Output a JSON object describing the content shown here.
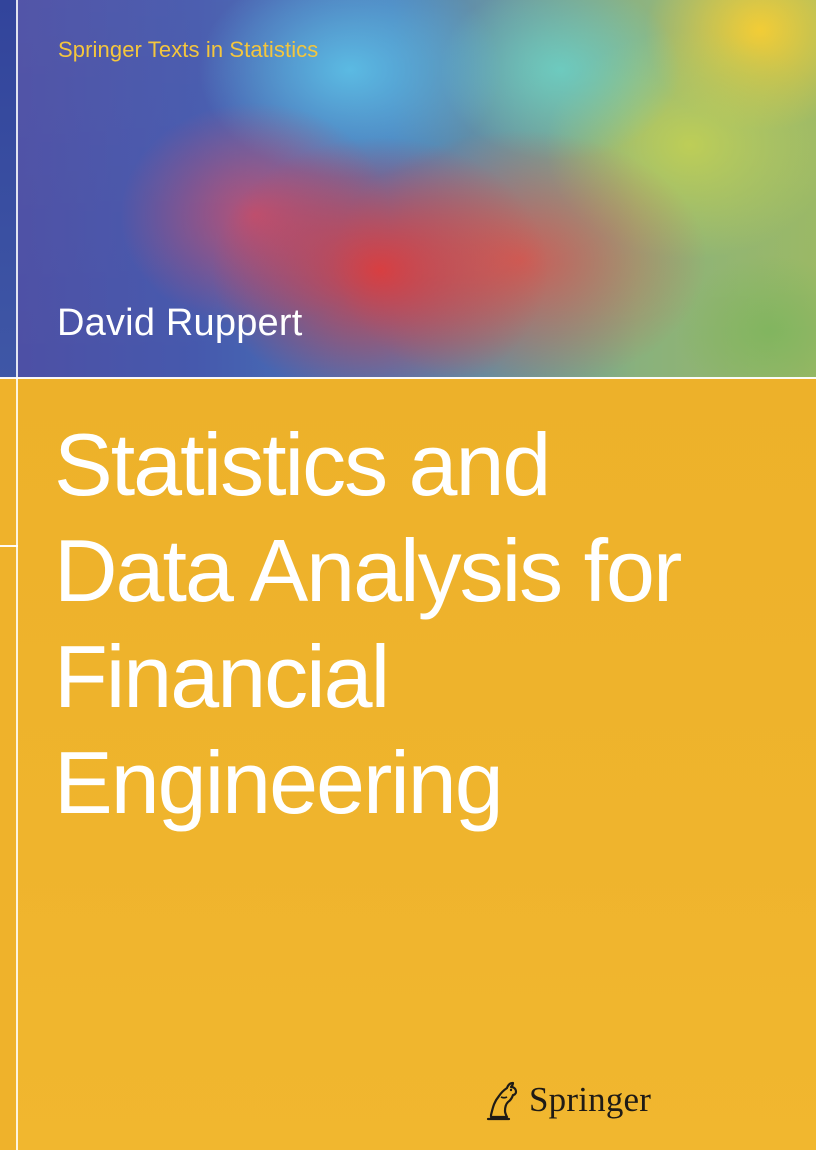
{
  "cover": {
    "series": "Springer Texts in Statistics",
    "author": "David Ruppert",
    "title_lines": [
      "Statistics and",
      "Data Analysis for",
      "Financial",
      "Engineering"
    ],
    "publisher": "Springer",
    "publisher_logo": "horse-head-icon"
  },
  "colors": {
    "background": "#efb22b",
    "series_text": "#f4c63d",
    "title_text": "#ffffff",
    "publisher_text": "#1f1b16"
  }
}
